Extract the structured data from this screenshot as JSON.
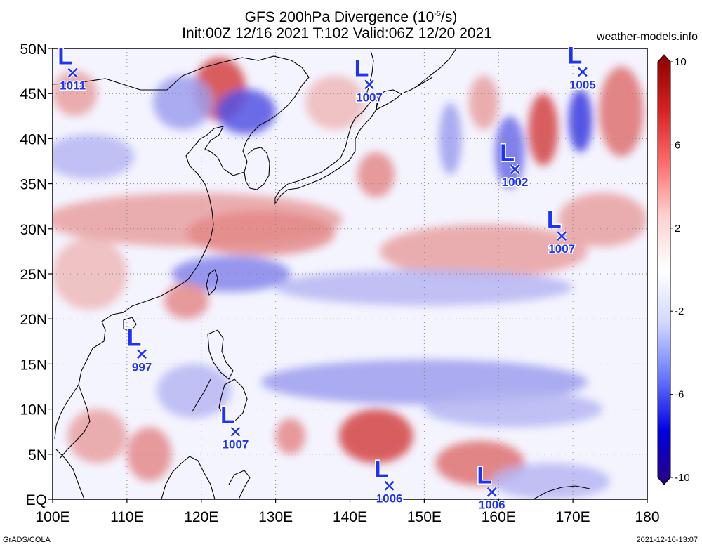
{
  "title": {
    "line1": "GFS 200hPa Divergence (10",
    "line1_sup": "-5",
    "line1_end": "/s)",
    "line2": "Init:00Z 12/16 2021 T:102 Valid:06Z 12/20 2021"
  },
  "site": "weather-models.info",
  "footer": {
    "left": "GrADS/COLA",
    "right": "2021-12-16-13:07"
  },
  "map": {
    "lat_ticks": [
      "50N",
      "45N",
      "40N",
      "35N",
      "30N",
      "25N",
      "20N",
      "15N",
      "10N",
      "5N",
      "EQ"
    ],
    "lon_ticks": [
      "100E",
      "110E",
      "120E",
      "130E",
      "140E",
      "150E",
      "160E",
      "170E",
      "180"
    ],
    "lat_values": [
      50,
      45,
      40,
      35,
      30,
      25,
      20,
      15,
      10,
      5,
      0
    ],
    "lon_values": [
      100,
      110,
      120,
      130,
      140,
      150,
      160,
      170,
      180
    ],
    "extent": {
      "lon": [
        100,
        180
      ],
      "lat": [
        0,
        50
      ]
    }
  },
  "colorbar": {
    "labels": [
      "10",
      "6",
      "2",
      "-2",
      "-6",
      "-10"
    ],
    "values": [
      10,
      6,
      2,
      -2,
      -6,
      -10
    ],
    "colors": [
      "#8b0000",
      "#d42020",
      "#ff6a6a",
      "#ffd0d0",
      "#ffffff",
      "#d0d8ff",
      "#6a78ff",
      "#0000e0",
      "#2a0080"
    ]
  },
  "lows": [
    {
      "label": "L",
      "pressure": "1011",
      "lon": 102.7,
      "lat": 47.3
    },
    {
      "label": "L",
      "pressure": "1007",
      "lon": 142.6,
      "lat": 46.0
    },
    {
      "label": "L",
      "pressure": "1005",
      "lon": 171.3,
      "lat": 47.4
    },
    {
      "label": "L",
      "pressure": "1002",
      "lon": 162.2,
      "lat": 36.6
    },
    {
      "label": "L",
      "pressure": "1007",
      "lon": 168.5,
      "lat": 29.2
    },
    {
      "label": "L",
      "pressure": "997",
      "lon": 112.0,
      "lat": 16.1
    },
    {
      "label": "L",
      "pressure": "1007",
      "lon": 124.6,
      "lat": 7.5
    },
    {
      "label": "L",
      "pressure": "1006",
      "lon": 145.3,
      "lat": 1.5
    },
    {
      "label": "L",
      "pressure": "1006",
      "lon": 159.1,
      "lat": 0.8
    }
  ],
  "field_blobs": [
    {
      "lon": 122.5,
      "lat": 45.5,
      "rx": 3.5,
      "ry": 3.5,
      "value": 8
    },
    {
      "lon": 126.0,
      "lat": 43.0,
      "rx": 4,
      "ry": 2.5,
      "value": -7
    },
    {
      "lon": 117.5,
      "lat": 44.0,
      "rx": 4,
      "ry": 3,
      "value": -4
    },
    {
      "lon": 171.0,
      "lat": 42.0,
      "rx": 1.6,
      "ry": 3.5,
      "value": -8
    },
    {
      "lon": 166.0,
      "lat": 41.0,
      "rx": 2,
      "ry": 4,
      "value": 8
    },
    {
      "lon": 161.5,
      "lat": 38.5,
      "rx": 2,
      "ry": 4,
      "value": -6
    },
    {
      "lon": 176.5,
      "lat": 43.0,
      "rx": 3,
      "ry": 5,
      "value": 6
    },
    {
      "lon": 158.0,
      "lat": 44.0,
      "rx": 2,
      "ry": 3,
      "value": 4
    },
    {
      "lon": 153.5,
      "lat": 40.0,
      "rx": 1.5,
      "ry": 4,
      "value": -4
    },
    {
      "lon": 143.5,
      "lat": 36.0,
      "rx": 2.5,
      "ry": 2.5,
      "value": 5
    },
    {
      "lon": 119.0,
      "lat": 31.0,
      "rx": 20,
      "ry": 3,
      "value": 4
    },
    {
      "lon": 128.0,
      "lat": 29.5,
      "rx": 10,
      "ry": 2.5,
      "value": 5
    },
    {
      "lon": 158.0,
      "lat": 27.5,
      "rx": 14,
      "ry": 3,
      "value": 4
    },
    {
      "lon": 174.0,
      "lat": 31.0,
      "rx": 6,
      "ry": 3,
      "value": 4
    },
    {
      "lon": 124.0,
      "lat": 25.0,
      "rx": 8,
      "ry": 2,
      "value": -5
    },
    {
      "lon": 150.0,
      "lat": 23.5,
      "rx": 20,
      "ry": 2,
      "value": -3
    },
    {
      "lon": 118.0,
      "lat": 22.0,
      "rx": 3,
      "ry": 2,
      "value": 5
    },
    {
      "lon": 105.0,
      "lat": 38.0,
      "rx": 6,
      "ry": 2.5,
      "value": -3
    },
    {
      "lon": 105.0,
      "lat": 25.0,
      "rx": 5,
      "ry": 4,
      "value": 3
    },
    {
      "lon": 150.0,
      "lat": 13.0,
      "rx": 22,
      "ry": 2.5,
      "value": -4
    },
    {
      "lon": 162.0,
      "lat": 10.0,
      "rx": 12,
      "ry": 2,
      "value": -3
    },
    {
      "lon": 143.5,
      "lat": 7.0,
      "rx": 5,
      "ry": 3,
      "value": 8
    },
    {
      "lon": 157.5,
      "lat": 4.0,
      "rx": 6,
      "ry": 2.5,
      "value": 6
    },
    {
      "lon": 113.0,
      "lat": 5.0,
      "rx": 3,
      "ry": 3,
      "value": 5
    },
    {
      "lon": 106.0,
      "lat": 7.0,
      "rx": 4,
      "ry": 3,
      "value": 4
    },
    {
      "lon": 119.0,
      "lat": 12.0,
      "rx": 5,
      "ry": 3,
      "value": -3
    },
    {
      "lon": 132.0,
      "lat": 7.0,
      "rx": 2,
      "ry": 2,
      "value": 5
    },
    {
      "lon": 167.0,
      "lat": 2.0,
      "rx": 8,
      "ry": 2,
      "value": -3
    },
    {
      "lon": 103.0,
      "lat": 45.0,
      "rx": 3,
      "ry": 2.5,
      "value": 4
    },
    {
      "lon": 138.0,
      "lat": 44.0,
      "rx": 4,
      "ry": 3,
      "value": 3
    }
  ]
}
